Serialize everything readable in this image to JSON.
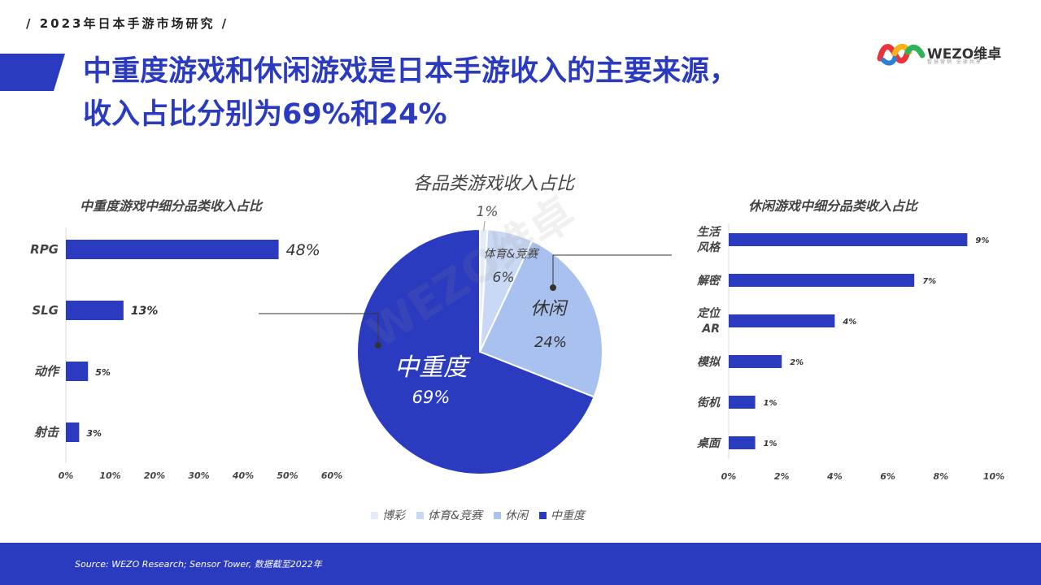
{
  "header": {
    "series_tag": "/ 2023年日本手游市场研究 /",
    "title_line1": "中重度游戏和休闲游戏是日本手游收入的主要来源，",
    "title_line2": "收入占比分别为69%和24%"
  },
  "logo": {
    "text": "WEZO维卓",
    "sub": "智慧营销 全球共享"
  },
  "watermark": "WEZO维卓",
  "colors": {
    "primary": "#2b3bc0",
    "blue_mid": "#a9c1ee",
    "blue_light": "#c9d8f4",
    "blue_pale": "#e3ebf9"
  },
  "footer": {
    "source": "Source:  WEZO Research;  Sensor Tower,  数据截至2022年"
  },
  "chart_data": [
    {
      "type": "bar",
      "orientation": "horizontal",
      "title": "中重度游戏中细分品类收入占比",
      "categories": [
        "RPG",
        "SLG",
        "动作",
        "射击"
      ],
      "values": [
        48,
        13,
        5,
        3
      ],
      "value_labels": [
        "48%",
        "13%",
        "5%",
        "3%"
      ],
      "xlim": [
        0,
        60
      ],
      "xticks": [
        "0%",
        "10%",
        "20%",
        "30%",
        "40%",
        "50%",
        "60%"
      ],
      "color": "#2b3bc0",
      "grid": false
    },
    {
      "type": "pie",
      "title": "各品类游戏收入占比",
      "slices": [
        {
          "label": "博彩",
          "value": 1,
          "value_label": "1%",
          "color": "#e3ebf9"
        },
        {
          "label": "体育&竞赛",
          "value": 6,
          "value_label": "6%",
          "color": "#c9d8f4"
        },
        {
          "label": "休闲",
          "value": 24,
          "value_label": "24%",
          "color": "#a9c1ee"
        },
        {
          "label": "中重度",
          "value": 69,
          "value_label": "69%",
          "color": "#2b3bc0"
        }
      ],
      "legend": [
        "博彩",
        "体育&竞赛",
        "休闲",
        "中重度"
      ],
      "legend_position": "bottom"
    },
    {
      "type": "bar",
      "orientation": "horizontal",
      "title": "休闲游戏中细分品类收入占比",
      "categories": [
        "生活风格",
        "解密",
        "定位AR",
        "模拟",
        "街机",
        "桌面"
      ],
      "category_lines": [
        [
          "生活",
          "风格"
        ],
        [
          "解密"
        ],
        [
          "定位",
          "AR"
        ],
        [
          "模拟"
        ],
        [
          "街机"
        ],
        [
          "桌面"
        ]
      ],
      "values": [
        9,
        7,
        4,
        2,
        1,
        1
      ],
      "value_labels": [
        "9%",
        "7%",
        "4%",
        "2%",
        "1%",
        "1%"
      ],
      "xlim": [
        0,
        10
      ],
      "xticks": [
        "0%",
        "2%",
        "4%",
        "6%",
        "8%",
        "10%"
      ],
      "color": "#2b3bc0",
      "grid": false
    }
  ]
}
